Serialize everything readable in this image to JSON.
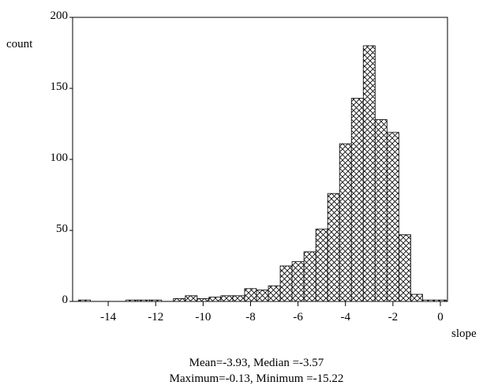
{
  "chart_data": {
    "type": "bar",
    "title": "",
    "xlabel": "slope",
    "ylabel": "count",
    "xlim": [
      -15.5,
      0.3
    ],
    "ylim": [
      0,
      200
    ],
    "bin_width": 0.5,
    "xticks": [
      -14,
      -12,
      -10,
      -8,
      -6,
      -4,
      -2,
      0
    ],
    "yticks": [
      0,
      50,
      100,
      150,
      200
    ],
    "bar_fill": "crosshatch",
    "grid": false,
    "legend": "none",
    "bins": [
      {
        "x0": -15.25,
        "x1": -14.75,
        "count": 1
      },
      {
        "x0": -14.75,
        "x1": -14.25,
        "count": 0
      },
      {
        "x0": -14.25,
        "x1": -13.75,
        "count": 0
      },
      {
        "x0": -13.75,
        "x1": -13.25,
        "count": 0
      },
      {
        "x0": -13.25,
        "x1": -12.75,
        "count": 1
      },
      {
        "x0": -12.75,
        "x1": -12.25,
        "count": 1
      },
      {
        "x0": -12.25,
        "x1": -11.75,
        "count": 1
      },
      {
        "x0": -11.75,
        "x1": -11.25,
        "count": 0
      },
      {
        "x0": -11.25,
        "x1": -10.75,
        "count": 2
      },
      {
        "x0": -10.75,
        "x1": -10.25,
        "count": 4
      },
      {
        "x0": -10.25,
        "x1": -9.75,
        "count": 2
      },
      {
        "x0": -9.75,
        "x1": -9.25,
        "count": 3
      },
      {
        "x0": -9.25,
        "x1": -8.75,
        "count": 4
      },
      {
        "x0": -8.75,
        "x1": -8.25,
        "count": 4
      },
      {
        "x0": -8.25,
        "x1": -7.75,
        "count": 9
      },
      {
        "x0": -7.75,
        "x1": -7.25,
        "count": 8
      },
      {
        "x0": -7.25,
        "x1": -6.75,
        "count": 11
      },
      {
        "x0": -6.75,
        "x1": -6.25,
        "count": 25
      },
      {
        "x0": -6.25,
        "x1": -5.75,
        "count": 28
      },
      {
        "x0": -5.75,
        "x1": -5.25,
        "count": 35
      },
      {
        "x0": -5.25,
        "x1": -4.75,
        "count": 51
      },
      {
        "x0": -4.75,
        "x1": -4.25,
        "count": 76
      },
      {
        "x0": -4.25,
        "x1": -3.75,
        "count": 111
      },
      {
        "x0": -3.75,
        "x1": -3.25,
        "count": 143
      },
      {
        "x0": -3.25,
        "x1": -2.75,
        "count": 180
      },
      {
        "x0": -2.75,
        "x1": -2.25,
        "count": 128
      },
      {
        "x0": -2.25,
        "x1": -1.75,
        "count": 119
      },
      {
        "x0": -1.75,
        "x1": -1.25,
        "count": 47
      },
      {
        "x0": -1.25,
        "x1": -0.75,
        "count": 5
      },
      {
        "x0": -0.75,
        "x1": -0.25,
        "count": 1
      },
      {
        "x0": -0.25,
        "x1": 0.25,
        "count": 1
      }
    ],
    "statistics_lines": [
      "Mean=-3.93, Median =-3.57",
      "Maximum=-0.13, Minimum =-15.22"
    ]
  }
}
